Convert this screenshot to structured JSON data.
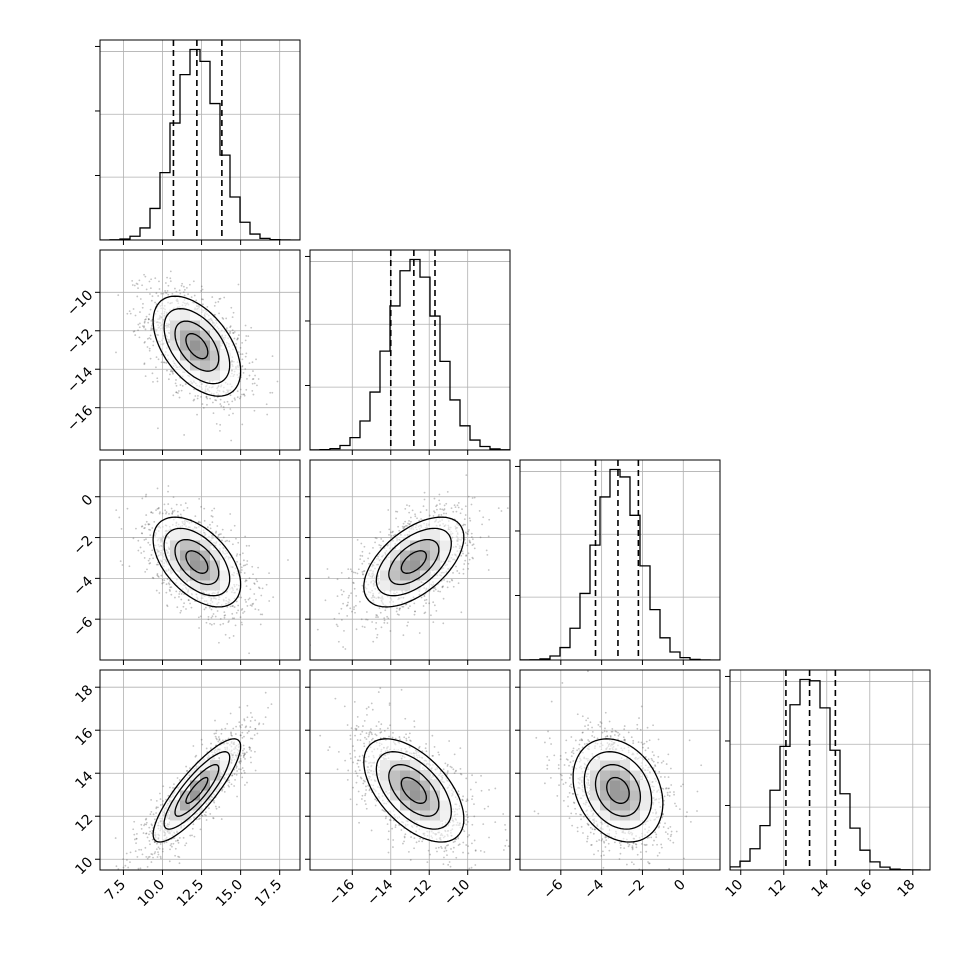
{
  "chart_data": {
    "type": "corner",
    "title": "",
    "parameters": [
      {
        "index": 0,
        "range": [
          6.0,
          18.8
        ],
        "ticks": [
          7.5,
          10.0,
          12.5,
          15.0,
          17.5
        ],
        "tick_labels": [
          "7.5",
          "10.0",
          "12.5",
          "15.0",
          "17.5"
        ],
        "mean": 12.2,
        "sd": 1.4,
        "quantiles": [
          10.7,
          12.2,
          13.8
        ]
      },
      {
        "index": 1,
        "range": [
          -18.2,
          -7.8
        ],
        "ticks": [
          -16,
          -14,
          -12,
          -10
        ],
        "tick_labels": [
          "−16",
          "−14",
          "−12",
          "−10"
        ],
        "mean": -12.8,
        "sd": 1.3,
        "quantiles": [
          -14.0,
          -12.8,
          -11.7
        ]
      },
      {
        "index": 2,
        "range": [
          -8.0,
          1.8
        ],
        "ticks": [
          -6,
          -4,
          -2,
          0
        ],
        "tick_labels": [
          "−6",
          "−4",
          "−2",
          "0"
        ],
        "mean": -3.2,
        "sd": 1.1,
        "quantiles": [
          -4.3,
          -3.2,
          -2.2
        ]
      },
      {
        "index": 3,
        "range": [
          9.5,
          18.8
        ],
        "ticks": [
          10,
          12,
          14,
          16,
          18
        ],
        "tick_labels": [
          "10",
          "12",
          "14",
          "16",
          "18"
        ],
        "mean": 13.2,
        "sd": 1.2,
        "quantiles": [
          12.1,
          13.2,
          14.4
        ]
      }
    ],
    "correlations": [
      [
        1,
        -0.5,
        -0.5,
        0.85
      ],
      [
        -0.5,
        1,
        0.55,
        -0.55
      ],
      [
        -0.5,
        0.55,
        1,
        -0.25
      ],
      [
        0.85,
        -0.55,
        -0.25,
        1
      ]
    ],
    "histogram_bins": 20,
    "contour_levels": 4,
    "grid": true,
    "colors": {
      "points": "#555555",
      "lines": "#000000",
      "grid": "#b0b0b0"
    }
  }
}
